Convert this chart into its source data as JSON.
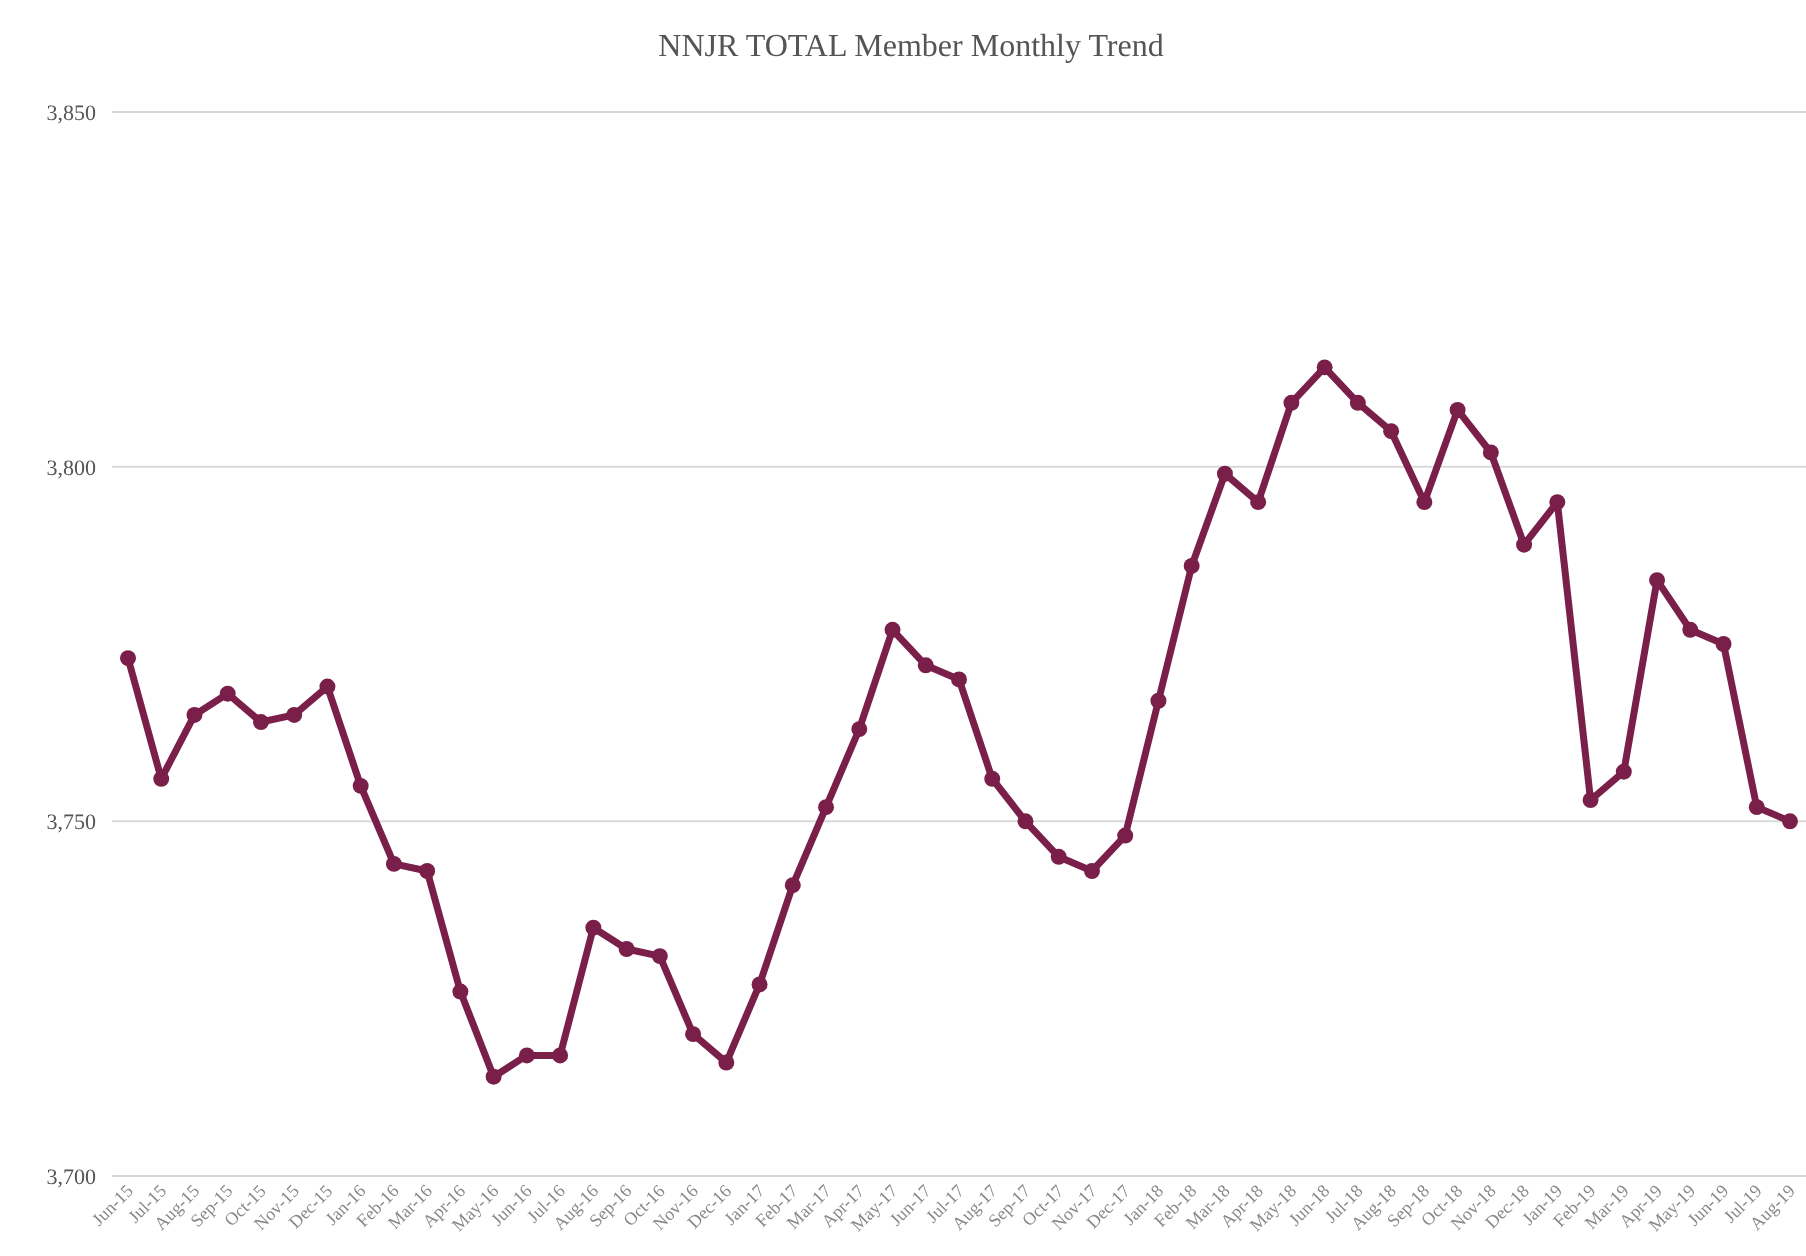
{
  "chart_data": {
    "type": "line",
    "title": "NNJR TOTAL Member Monthly Trend",
    "categories": [
      "Jun-15",
      "Jul-15",
      "Aug-15",
      "Sep-15",
      "Oct-15",
      "Nov-15",
      "Dec-15",
      "Jan-16",
      "Feb-16",
      "Mar-16",
      "Apr-16",
      "May-16",
      "Jun-16",
      "Jul-16",
      "Aug-16",
      "Sep-16",
      "Oct-16",
      "Nov-16",
      "Dec-16",
      "Jan-17",
      "Feb-17",
      "Mar-17",
      "Apr-17",
      "May-17",
      "Jun-17",
      "Jul-17",
      "Aug-17",
      "Sep-17",
      "Oct-17",
      "Nov-17",
      "Dec-17",
      "Jan-18",
      "Feb-18",
      "Mar-18",
      "Apr-18",
      "May-18",
      "Jun-18",
      "Jul-18",
      "Aug-18",
      "Sep-18",
      "Oct-18",
      "Nov-18",
      "Dec-18",
      "Jan-19",
      "Feb-19",
      "Mar-19",
      "Apr-19",
      "May-19",
      "Jun-19",
      "Jul-19",
      "Aug-19"
    ],
    "series": [
      {
        "color": "#7a1f4a",
        "values": [
          3773,
          3756,
          3765,
          3768,
          3764,
          3765,
          3769,
          3755,
          3744,
          3743,
          3726,
          3714,
          3717,
          3717,
          3735,
          3732,
          3731,
          3720,
          3716,
          3727,
          3741,
          3752,
          3763,
          3777,
          3772,
          3770,
          3756,
          3750,
          3745,
          3743,
          3748,
          3767,
          3786,
          3799,
          3795,
          3809,
          3814,
          3809,
          3805,
          3795,
          3808,
          3802,
          3789,
          3795,
          3753,
          3757,
          3784,
          3777,
          3775,
          3752,
          3750
        ]
      }
    ],
    "ylim": [
      3700,
      3850
    ],
    "yticks": [
      {
        "value": 3700,
        "label": "3,700"
      },
      {
        "value": 3750,
        "label": "3,750"
      },
      {
        "value": 3800,
        "label": "3,800"
      },
      {
        "value": 3850,
        "label": "3,850"
      }
    ],
    "grid": "y",
    "marker": "circle",
    "line_style": "solid"
  }
}
